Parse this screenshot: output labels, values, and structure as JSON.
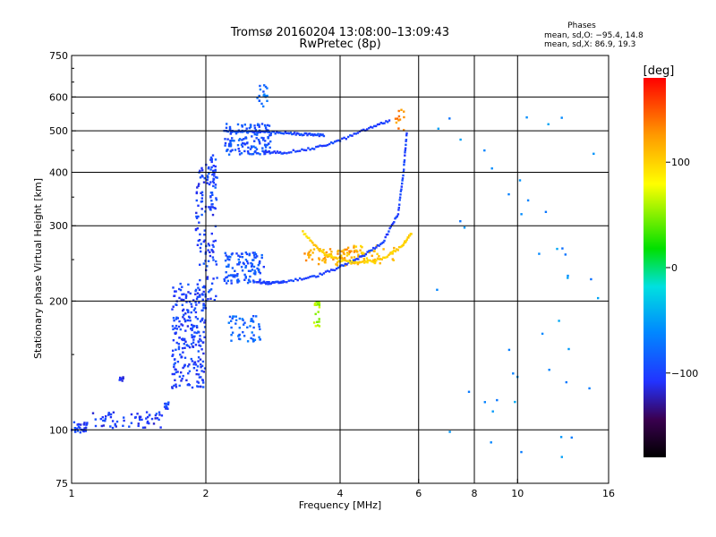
{
  "header": {
    "title_line1": "Tromsø 20160204 13:08:00–13:09:43",
    "title_line2": "RwPretec (8p)",
    "stats_title": "Phases",
    "stats_o": "mean, sd,O: −95.4, 14.8",
    "stats_x": "mean, sd,X: 86.9, 19.3"
  },
  "colorbar": {
    "unit": "[deg]",
    "ticks": [
      {
        "value": 100,
        "label": "100"
      },
      {
        "value": 0,
        "label": "0"
      },
      {
        "value": -100,
        "label": "−100"
      }
    ],
    "min": -180,
    "max": 180
  },
  "chart_data": {
    "type": "scatter",
    "xlabel": "Frequency [MHz]",
    "ylabel": "Stationary phase Virtual Height [km]",
    "xscale": "log",
    "yscale": "log",
    "xlim": [
      1,
      16
    ],
    "ylim": [
      75,
      750
    ],
    "x_ticks": [
      1,
      2,
      4,
      6,
      8,
      10,
      16
    ],
    "x_tick_labels": [
      "1",
      "2",
      "4",
      "6",
      "8",
      "10",
      "16"
    ],
    "y_ticks": [
      75,
      100,
      200,
      300,
      400,
      500,
      600,
      750
    ],
    "y_tick_labels": [
      "75",
      "100",
      "200",
      "300",
      "400",
      "500",
      "600",
      "750"
    ],
    "grid": true,
    "point_groups": [
      {
        "x": [
          1.0,
          1.08
        ],
        "y": [
          98,
          105
        ],
        "phase": -100,
        "count": 28
      },
      {
        "x": [
          1.08,
          1.6
        ],
        "y": [
          101,
          110
        ],
        "phase": -105,
        "count": 60
      },
      {
        "x": [
          1.28,
          1.32
        ],
        "y": [
          130,
          133
        ],
        "phase": -110,
        "count": 8
      },
      {
        "x": [
          1.55,
          1.65
        ],
        "y": [
          108,
          118
        ],
        "phase": -100,
        "count": 12
      },
      {
        "x": [
          1.68,
          2.0
        ],
        "y": [
          125,
          220
        ],
        "phase": -100,
        "count": 240
      },
      {
        "x": [
          1.9,
          2.12
        ],
        "y": [
          200,
          420
        ],
        "phase": -100,
        "count": 120
      },
      {
        "x": [
          2.03,
          2.12
        ],
        "y": [
          330,
          440
        ],
        "phase": -95,
        "count": 30
      },
      {
        "x": [
          2.2,
          2.8
        ],
        "y": [
          440,
          520
        ],
        "phase": -90,
        "count": 140
      },
      {
        "x": [
          2.2,
          2.7
        ],
        "y": [
          220,
          260
        ],
        "phase": -90,
        "count": 110
      },
      {
        "x": [
          2.25,
          2.65
        ],
        "y": [
          160,
          185
        ],
        "phase": -80,
        "count": 50
      },
      {
        "x": [
          2.6,
          2.75
        ],
        "y": [
          570,
          640
        ],
        "phase": -80,
        "count": 18
      },
      {
        "x": [
          3.3,
          4.5
        ],
        "y": [
          242,
          265
        ],
        "phase": 120,
        "count": 80
      },
      {
        "x": [
          3.5,
          3.6
        ],
        "y": [
          172,
          200
        ],
        "phase": 60,
        "count": 20
      },
      {
        "x": [
          4.0,
          5.3
        ],
        "y": [
          245,
          270
        ],
        "phase": 110,
        "count": 40
      },
      {
        "x": [
          5.3,
          5.6
        ],
        "y": [
          500,
          560
        ],
        "phase": 130,
        "count": 12
      },
      {
        "x": [
          6.5,
          15.5
        ],
        "y": [
          80,
          600
        ],
        "phase": -60,
        "count": 45
      }
    ],
    "traces": [
      {
        "name": "o-trace upper",
        "x": [
          2.7,
          3.0,
          3.5,
          4.0,
          4.6,
          5.2
        ],
        "y": [
          445,
          445,
          455,
          475,
          505,
          530
        ],
        "phase": -100
      },
      {
        "name": "o-trace lower",
        "x": [
          2.6,
          2.8,
          3.0,
          3.5,
          4.0,
          4.5,
          5.0,
          5.4,
          5.55,
          5.65
        ],
        "y": [
          222,
          220,
          222,
          228,
          240,
          255,
          275,
          320,
          400,
          500
        ],
        "phase": -100
      },
      {
        "name": "x-trace",
        "x": [
          3.3,
          3.6,
          4.0,
          4.5,
          5.0,
          5.5,
          5.8
        ],
        "y": [
          290,
          262,
          248,
          246,
          252,
          268,
          290
        ],
        "phase": 100
      },
      {
        "name": "upper arc",
        "x": [
          2.2,
          2.5,
          2.8,
          3.1,
          3.4,
          3.7
        ],
        "y": [
          500,
          498,
          495,
          493,
          490,
          488
        ],
        "phase": -95
      }
    ]
  }
}
